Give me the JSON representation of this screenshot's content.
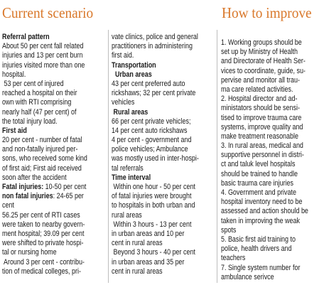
{
  "current_scenario": {
    "title": "Current scenario",
    "columns": [
      [
        {
          "bold": "Referral pattern"
        },
        "About 50 per cent fall related",
        "injuries and 13 per cent burn",
        "injuries visited more than one",
        "hospital.",
        " 53 per cent of injured",
        "reached a hospital on their",
        "own with RTI comprising",
        "nearly half (47 per cent) of",
        "the total injury load.",
        {
          "bold": "First aid"
        },
        "20 per cent - number of fatal",
        "and non-fatally injured per-",
        "sons, who received some kind",
        "of first aid; First aid received",
        "soon after the accident",
        {
          "bold": "Fatal injuries:",
          "text": " 10-50 per cent"
        },
        {
          "bold": "non fatal injuries",
          "text": ": 24-65 per"
        },
        "cent",
        "56.25 per cent of RTI cases",
        "were taken to nearby govern-",
        "ment hospital; 39.09 per cent",
        "were shifted to private hospi-",
        "tal or nursing home",
        " Around 3 per cent - contribu-",
        "tion of medical colleges, pri-"
      ],
      [
        "vate clinics, police and general",
        "practitioners in administering",
        "first aid.",
        {
          "bold": "Transportation"
        },
        {
          "bold": "  Urban areas"
        },
        "43 per cent preferred auto",
        "rickshaws; 32 per cent private",
        "vehicles",
        {
          "bold": " Rural areas"
        },
        "66 per cent private vehicles;",
        "14 per cent auto rickshaws",
        "4 per cent - government and",
        "police vehicles; Ambulance",
        "was mostly used in inter-hospi-",
        "tal referrals",
        {
          "bold": "Time interval"
        },
        " Within one hour - 50 per cent",
        "of fatal injuries were brought",
        "to hospitals in both urban and",
        "rural areas",
        " Within 3 hours - 13 per cent",
        "in urban areas and 10 per",
        "cent in rural areas",
        " Beyond 3 hours - 40 per cent",
        "in urban areas and 35 per",
        "cent in rural areas"
      ]
    ]
  },
  "how_to_improve": {
    "title": "How to improve",
    "lines": [
      "1. Working groups should be",
      "set up by Ministry of Health",
      "and Directorate of Health Ser-",
      "vices to coordinate, guide, su-",
      "pervise and monitor all trau-",
      "ma care related activities.",
      "2. Hospital director and ad-",
      "ministators should be sensi-",
      "tised to improve trauma care",
      "systems, improve quality and",
      "make treatment reasonable",
      "3. In rural areas, medical and",
      "supportive personnel in distri-",
      "ct and taluk level hospitals",
      "should be trained to handle",
      "basic trauma care injuries",
      "4. Government and private",
      "hospital inventory need to be",
      "assessed and action should be",
      "taken in improving the weak",
      "spots",
      "5. Basic first aid training to",
      "police, health drivers and",
      "teachers",
      "7. Single system number for",
      "ambulance serivce"
    ]
  }
}
